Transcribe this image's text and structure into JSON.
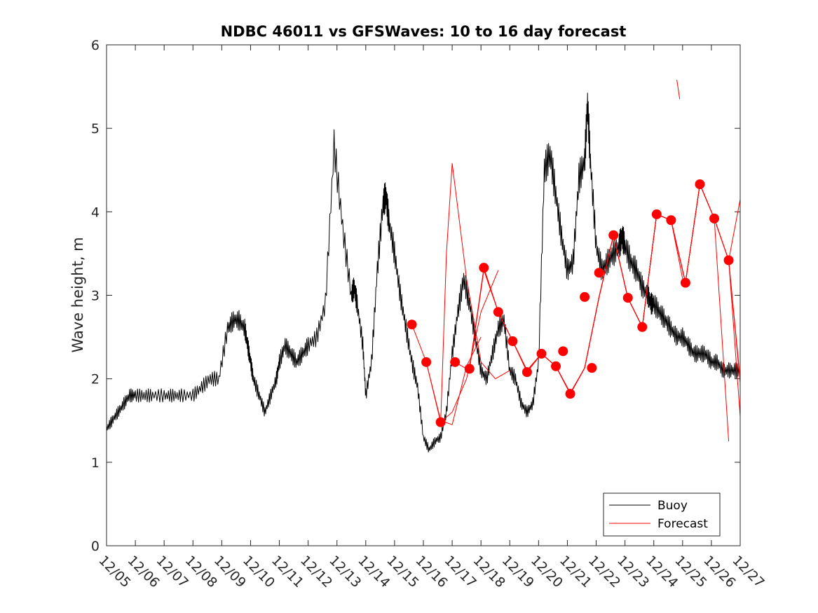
{
  "chart_data": {
    "type": "line",
    "title": "NDBC 46011 vs GFSWaves: 10 to 16 day forecast",
    "xlabel": "",
    "ylabel": "Wave height, m",
    "xlim": [
      0,
      22
    ],
    "ylim": [
      0,
      6
    ],
    "x_unit": "days since 12/05",
    "x_ticks": [
      0,
      1,
      2,
      3,
      4,
      5,
      6,
      7,
      8,
      9,
      10,
      11,
      12,
      13,
      14,
      15,
      16,
      17,
      18,
      19,
      20,
      21,
      22
    ],
    "x_tick_labels": [
      "12/05",
      "12/06",
      "12/07",
      "12/08",
      "12/09",
      "12/10",
      "12/11",
      "12/12",
      "12/13",
      "12/14",
      "12/15",
      "12/16",
      "12/17",
      "12/18",
      "12/19",
      "12/20",
      "12/21",
      "12/22",
      "12/23",
      "12/24",
      "12/25",
      "12/26",
      "12/27"
    ],
    "y_ticks": [
      0,
      1,
      2,
      3,
      4,
      5,
      6
    ],
    "y_tick_labels": [
      "0",
      "1",
      "2",
      "3",
      "4",
      "5",
      "6"
    ],
    "legend": {
      "position": "bottom-right",
      "entries": [
        "Buoy",
        "Forecast"
      ]
    },
    "colors": {
      "buoy": "#000000",
      "forecast": "#ff0000",
      "axis": "#262626"
    },
    "series": [
      {
        "name": "Buoy",
        "kind": "line",
        "x": [
          0,
          0.2,
          0.4,
          0.6,
          0.8,
          1.0,
          1.3,
          1.6,
          2.0,
          2.3,
          2.6,
          3.0,
          3.3,
          3.6,
          3.9,
          4.2,
          4.4,
          4.6,
          4.8,
          4.9,
          5.0,
          5.1,
          5.3,
          5.5,
          5.7,
          5.9,
          6.0,
          6.2,
          6.4,
          6.6,
          6.8,
          7.0,
          7.3,
          7.6,
          7.9,
          8.2,
          8.5,
          8.6,
          8.7,
          8.9,
          9.0,
          9.2,
          9.4,
          9.6,
          9.7,
          9.8,
          10.0,
          10.2,
          10.4,
          10.6,
          10.8,
          11.0,
          11.2,
          11.4,
          11.6,
          11.8,
          12.0,
          12.2,
          12.4,
          12.6,
          12.8,
          13.0,
          13.2,
          13.4,
          13.6,
          13.8,
          14.0,
          14.2,
          14.4,
          14.6,
          14.8,
          15.0,
          15.2,
          15.4,
          15.6,
          15.8,
          16.0,
          16.2,
          16.4,
          16.6,
          16.7,
          16.8,
          17.0,
          17.2,
          17.4,
          17.6,
          17.8,
          17.9,
          18.0,
          18.2,
          18.4,
          18.6,
          18.8,
          18.9,
          19.0,
          19.2,
          19.4,
          19.6,
          19.8,
          20.0,
          20.2,
          20.4,
          20.6,
          20.8,
          21.0,
          21.2,
          21.4,
          21.6,
          21.8,
          22.0
        ],
        "y": [
          1.4,
          1.5,
          1.6,
          1.7,
          1.8,
          1.8,
          1.8,
          1.8,
          1.8,
          1.8,
          1.8,
          1.8,
          1.9,
          2.0,
          2.0,
          2.6,
          2.7,
          2.7,
          2.6,
          2.4,
          2.2,
          2.0,
          1.8,
          1.6,
          1.8,
          2.0,
          2.2,
          2.4,
          2.3,
          2.2,
          2.3,
          2.4,
          2.5,
          2.9,
          4.8,
          3.8,
          3.0,
          3.1,
          2.9,
          2.4,
          1.8,
          2.2,
          3.3,
          4.1,
          4.2,
          3.9,
          3.5,
          3.0,
          2.6,
          2.2,
          1.9,
          1.3,
          1.15,
          1.25,
          1.3,
          1.6,
          2.3,
          2.8,
          3.2,
          2.9,
          2.5,
          2.1,
          2.0,
          2.3,
          2.6,
          2.7,
          2.1,
          2.0,
          1.7,
          1.6,
          1.7,
          2.2,
          4.5,
          4.7,
          4.2,
          3.7,
          3.3,
          3.4,
          4.4,
          4.6,
          5.3,
          4.6,
          3.6,
          3.3,
          3.4,
          3.5,
          3.6,
          3.7,
          3.6,
          3.4,
          3.3,
          3.1,
          3.0,
          2.9,
          2.9,
          2.8,
          2.7,
          2.6,
          2.5,
          2.5,
          2.4,
          2.3,
          2.3,
          2.3,
          2.2,
          2.2,
          2.1,
          2.1,
          2.1,
          2.1
        ]
      },
      {
        "name": "Forecast",
        "kind": "line",
        "x": [
          10.6,
          11.1,
          11.6,
          12.0,
          12.5,
          13.0
        ],
        "y": [
          2.65,
          2.2,
          1.5,
          1.45,
          2.15,
          2.5
        ]
      },
      {
        "name": "Forecast",
        "kind": "line",
        "x": [
          11.1,
          11.6,
          12.0,
          12.5,
          13.0,
          13.6
        ],
        "y": [
          2.2,
          1.48,
          1.6,
          2.0,
          2.8,
          3.3
        ]
      },
      {
        "name": "Forecast",
        "kind": "line",
        "x": [
          11.6,
          11.8,
          12.0,
          12.5,
          13.0,
          13.5,
          14.0
        ],
        "y": [
          1.48,
          3.5,
          4.58,
          3.2,
          2.2,
          2.0,
          2.1
        ]
      },
      {
        "name": "Forecast",
        "kind": "line",
        "x": [
          12.1,
          12.6,
          13.1,
          13.6,
          14.1,
          14.6,
          15.1
        ],
        "y": [
          2.2,
          2.1,
          3.3,
          2.8,
          2.45,
          2.1,
          2.3
        ]
      },
      {
        "name": "Forecast",
        "kind": "line",
        "x": [
          12.6,
          13.1,
          13.6,
          14.1,
          14.6,
          15.1,
          15.6,
          16.1
        ],
        "y": [
          2.12,
          3.33,
          2.8,
          2.45,
          2.1,
          2.3,
          2.15,
          1.83
        ]
      },
      {
        "name": "Forecast",
        "kind": "line",
        "x": [
          13.1,
          13.6,
          14.1,
          14.6,
          15.1,
          15.6,
          16.1,
          16.6,
          17.1
        ],
        "y": [
          3.33,
          2.8,
          2.45,
          2.1,
          2.3,
          2.15,
          1.83,
          2.13,
          2.98
        ]
      },
      {
        "name": "Forecast",
        "kind": "line",
        "x": [
          13.6,
          14.1,
          14.6,
          15.1,
          15.6,
          16.1,
          16.6,
          17.1,
          17.6,
          18.1
        ],
        "y": [
          2.8,
          2.45,
          2.1,
          2.3,
          2.15,
          1.83,
          2.13,
          2.98,
          3.72,
          2.97
        ]
      },
      {
        "name": "Forecast",
        "kind": "line",
        "x": [
          14.1,
          14.6,
          15.1,
          15.6,
          16.1,
          16.6,
          17.1,
          17.6,
          18.1,
          18.6,
          19.1
        ],
        "y": [
          2.45,
          2.08,
          2.3,
          2.15,
          1.82,
          2.13,
          2.98,
          3.72,
          2.97,
          2.62,
          3.97
        ]
      },
      {
        "name": "Forecast",
        "kind": "line",
        "x": [
          14.6,
          15.1,
          15.6,
          16.1,
          16.6,
          17.1,
          17.6,
          18.1,
          18.6,
          19.1,
          19.6,
          20.0
        ],
        "y": [
          2.08,
          2.3,
          2.15,
          1.82,
          2.13,
          2.98,
          3.72,
          2.97,
          2.62,
          3.97,
          3.9,
          3.2
        ]
      },
      {
        "name": "Forecast",
        "kind": "line",
        "x": [
          15.1,
          15.6,
          16.1,
          16.6,
          17.1,
          17.6,
          18.1,
          18.6,
          19.1,
          19.6,
          20.1,
          20.6
        ],
        "y": [
          2.3,
          2.15,
          1.82,
          2.13,
          2.98,
          3.72,
          2.97,
          2.62,
          3.97,
          3.9,
          3.15,
          4.33
        ]
      },
      {
        "name": "Forecast",
        "kind": "line",
        "x": [
          15.6,
          16.1,
          16.6,
          17.1,
          17.6,
          18.1,
          18.6,
          19.1,
          19.6,
          20.1,
          20.6,
          21.1
        ],
        "y": [
          2.15,
          1.82,
          2.13,
          2.98,
          3.72,
          2.97,
          2.62,
          3.97,
          3.9,
          3.15,
          4.33,
          3.92
        ]
      },
      {
        "name": "Forecast",
        "kind": "line",
        "x": [
          16.1,
          16.6,
          17.1,
          17.6,
          18.1,
          18.6,
          19.1,
          19.6,
          20.1,
          20.6,
          21.1,
          21.6
        ],
        "y": [
          1.82,
          2.13,
          2.98,
          3.72,
          2.97,
          2.62,
          3.97,
          3.9,
          3.15,
          4.33,
          3.92,
          3.42
        ]
      },
      {
        "name": "Forecast",
        "kind": "line",
        "x": [
          16.6,
          17.1,
          17.6,
          18.1,
          18.6,
          19.1,
          19.6,
          20.1,
          20.6,
          21.1,
          21.6,
          22.0
        ],
        "y": [
          2.13,
          2.98,
          3.72,
          2.97,
          2.62,
          3.97,
          3.9,
          3.15,
          4.33,
          3.92,
          3.42,
          2.0
        ]
      },
      {
        "name": "Forecast",
        "kind": "line",
        "x": [
          17.1,
          17.6,
          18.1,
          18.6,
          19.1,
          19.6,
          20.1,
          20.6,
          21.1,
          21.6,
          22.0
        ],
        "y": [
          2.98,
          3.72,
          2.97,
          2.62,
          3.97,
          3.9,
          3.15,
          4.33,
          3.92,
          3.42,
          4.15
        ]
      },
      {
        "name": "Forecast",
        "kind": "line",
        "x": [
          17.6,
          18.1,
          18.6,
          19.1,
          19.6,
          20.1,
          20.6,
          21.1,
          21.6,
          22.0
        ],
        "y": [
          3.72,
          2.97,
          2.62,
          3.97,
          3.9,
          3.15,
          4.33,
          3.92,
          3.42,
          1.95
        ]
      },
      {
        "name": "Forecast",
        "kind": "line",
        "x": [
          18.1,
          18.6,
          19.1,
          19.6,
          20.1,
          20.6,
          21.1,
          21.6,
          22.0
        ],
        "y": [
          2.97,
          2.62,
          3.97,
          3.9,
          3.15,
          4.33,
          3.92,
          3.42,
          1.55
        ]
      },
      {
        "name": "Forecast",
        "kind": "line",
        "x": [
          19.1,
          19.6,
          20.1,
          20.6,
          21.1,
          21.6
        ],
        "y": [
          3.97,
          3.9,
          3.15,
          4.33,
          3.92,
          1.25
        ]
      },
      {
        "name": "Forecast",
        "kind": "line",
        "x": [
          19.8,
          19.9
        ],
        "y": [
          5.58,
          5.35
        ]
      },
      {
        "name": "Forecast points",
        "kind": "points",
        "x": [
          10.6,
          11.1,
          11.6,
          12.1,
          12.6,
          13.1,
          13.6,
          14.1,
          14.6,
          15.1,
          15.6,
          15.85,
          16.1,
          16.6,
          16.85,
          17.1,
          17.6,
          18.1,
          18.6,
          19.1,
          19.6,
          20.1,
          20.6,
          21.1,
          21.6
        ],
        "y": [
          2.65,
          2.2,
          1.48,
          2.2,
          2.12,
          3.33,
          2.8,
          2.45,
          2.08,
          2.3,
          2.15,
          2.33,
          1.82,
          2.98,
          2.13,
          3.27,
          3.72,
          2.97,
          2.62,
          3.97,
          3.9,
          3.15,
          4.33,
          3.92,
          3.42
        ]
      }
    ]
  }
}
